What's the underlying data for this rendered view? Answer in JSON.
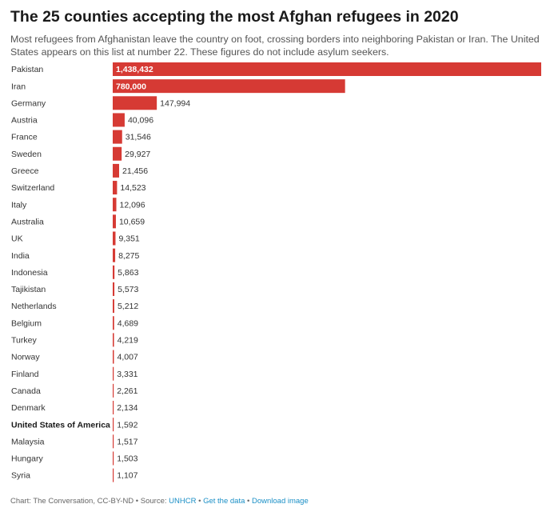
{
  "header": {
    "title": "The 25 counties accepting the most Afghan refugees in 2020",
    "subtitle": "Most refugees from Afghanistan leave the country on foot, crossing borders into neighboring Pakistan or Iran. The United States appears on this list at number 22. These figures do not include asylum seekers."
  },
  "colors": {
    "bar": "#d63a34",
    "label_inside": "#ffffff",
    "label_outside": "#333333",
    "link": "#1a8fc6"
  },
  "chart_data": {
    "type": "bar",
    "orientation": "horizontal",
    "categories": [
      "Pakistan",
      "Iran",
      "Germany",
      "Austria",
      "France",
      "Sweden",
      "Greece",
      "Switzerland",
      "Italy",
      "Australia",
      "UK",
      "India",
      "Indonesia",
      "Tajikistan",
      "Netherlands",
      "Belgium",
      "Turkey",
      "Norway",
      "Finland",
      "Canada",
      "Denmark",
      "United States of America",
      "Malaysia",
      "Hungary",
      "Syria"
    ],
    "values": [
      1438432,
      780000,
      147994,
      40096,
      31546,
      29927,
      21456,
      14523,
      12096,
      10659,
      9351,
      8275,
      5863,
      5573,
      5212,
      4689,
      4219,
      4007,
      3331,
      2261,
      2134,
      1592,
      1517,
      1503,
      1107
    ],
    "value_labels": [
      "1,438,432",
      "780,000",
      "147,994",
      "40,096",
      "31,546",
      "29,927",
      "21,456",
      "14,523",
      "12,096",
      "10,659",
      "9,351",
      "8,275",
      "5,863",
      "5,573",
      "5,212",
      "4,689",
      "4,219",
      "4,007",
      "3,331",
      "2,261",
      "2,134",
      "1,592",
      "1,517",
      "1,503",
      "1,107"
    ],
    "highlight_category": "United States of America",
    "xlim": [
      0,
      1438432
    ],
    "grid": false,
    "legend": "none",
    "title": "The 25 counties accepting the most Afghan refugees in 2020",
    "xlabel": "",
    "ylabel": ""
  },
  "footer": {
    "credit": "Chart: The Conversation, CC-BY-ND • Source: ",
    "source_link": "UNHCR",
    "separator": " • ",
    "get_data": "Get the data",
    "download": "Download image"
  }
}
